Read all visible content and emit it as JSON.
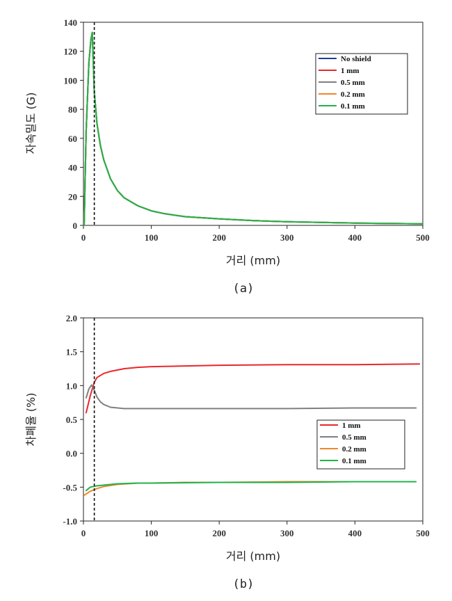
{
  "chart_data": [
    {
      "type": "line",
      "caption": "(a)",
      "xlabel": "거리 (mm)",
      "ylabel": "자속밀도 (G)",
      "xlim": [
        0,
        500
      ],
      "ylim": [
        0,
        140
      ],
      "xticks": [
        0,
        100,
        200,
        300,
        400,
        500
      ],
      "yticks": [
        0,
        20,
        40,
        60,
        80,
        100,
        120,
        140
      ],
      "xtick_labels": [
        "0",
        "100",
        "200",
        "300",
        "400",
        "500"
      ],
      "ytick_labels": [
        "0",
        "20",
        "40",
        "60",
        "80",
        "100",
        "120",
        "140"
      ],
      "vline_x": 16,
      "legend": "top-right",
      "series": [
        {
          "name": "No shield",
          "color": "#1f3a9a",
          "x": [
            1,
            4,
            8,
            11,
            13,
            16,
            20,
            25,
            30,
            40,
            50,
            60,
            80,
            100,
            120,
            150,
            200,
            250,
            300,
            350,
            400,
            450,
            500
          ],
          "y": [
            0,
            65,
            112,
            128,
            133,
            92,
            70,
            55,
            45,
            32,
            24,
            19,
            13.5,
            10,
            8,
            6,
            4.5,
            3.3,
            2.5,
            2,
            1.6,
            1.3,
            1.1
          ]
        },
        {
          "name": "1 mm",
          "color": "#e8262a",
          "x": [
            1,
            4,
            8,
            11,
            13,
            16,
            20,
            25,
            30,
            40,
            50,
            60,
            80,
            100,
            120,
            150,
            200,
            250,
            300,
            350,
            400,
            450,
            500
          ],
          "y": [
            0,
            65,
            112,
            128,
            133,
            92,
            70,
            55,
            45,
            32,
            24,
            19,
            13.5,
            10,
            8,
            6,
            4.5,
            3.3,
            2.5,
            2,
            1.6,
            1.3,
            1.1
          ]
        },
        {
          "name": "0.5 mm",
          "color": "#7f7f7f",
          "x": [
            1,
            4,
            8,
            11,
            13,
            16,
            20,
            25,
            30,
            40,
            50,
            60,
            80,
            100,
            120,
            150,
            200,
            250,
            300,
            350,
            400,
            450,
            500
          ],
          "y": [
            0,
            65,
            112,
            128,
            133,
            92,
            70,
            55,
            45,
            32,
            24,
            19,
            13.5,
            10,
            8,
            6,
            4.5,
            3.3,
            2.5,
            2,
            1.6,
            1.3,
            1.1
          ]
        },
        {
          "name": "0.2 mm",
          "color": "#f0862a",
          "x": [
            1,
            4,
            8,
            11,
            13,
            16,
            20,
            25,
            30,
            40,
            50,
            60,
            80,
            100,
            120,
            150,
            200,
            250,
            300,
            350,
            400,
            450,
            500
          ],
          "y": [
            0,
            65,
            112,
            128,
            133,
            92,
            70,
            55,
            45,
            32,
            24,
            19,
            13.5,
            10,
            8,
            6,
            4.5,
            3.3,
            2.5,
            2,
            1.6,
            1.3,
            1.1
          ]
        },
        {
          "name": "0.1 mm",
          "color": "#21b24b",
          "x": [
            1,
            4,
            8,
            11,
            13,
            16,
            20,
            25,
            30,
            40,
            50,
            60,
            80,
            100,
            120,
            150,
            200,
            250,
            300,
            350,
            400,
            450,
            500
          ],
          "y": [
            0,
            65,
            112,
            128,
            133,
            92,
            70,
            55,
            45,
            32,
            24,
            19,
            13.5,
            10,
            8,
            6,
            4.5,
            3.3,
            2.5,
            2,
            1.6,
            1.3,
            1.1
          ]
        }
      ]
    },
    {
      "type": "line",
      "caption": "(b)",
      "xlabel": "거리 (mm)",
      "ylabel": "차폐율 (%)",
      "xlim": [
        0,
        500
      ],
      "ylim": [
        -1.0,
        2.0
      ],
      "xticks": [
        0,
        100,
        200,
        300,
        400,
        500
      ],
      "yticks": [
        -1.0,
        -0.5,
        0.0,
        0.5,
        1.0,
        1.5,
        2.0
      ],
      "xtick_labels": [
        "0",
        "100",
        "200",
        "300",
        "400",
        "500"
      ],
      "ytick_labels": [
        "-1.0",
        "-0.5",
        "0.0",
        "0.5",
        "1.0",
        "1.5",
        "2.0"
      ],
      "vline_x": 16,
      "legend": "center-right",
      "series": [
        {
          "name": "1 mm",
          "color": "#e8262a",
          "x": [
            4,
            10,
            16,
            20,
            30,
            40,
            60,
            80,
            100,
            150,
            200,
            300,
            400,
            495
          ],
          "y": [
            0.6,
            0.85,
            1.05,
            1.12,
            1.18,
            1.21,
            1.25,
            1.27,
            1.28,
            1.29,
            1.3,
            1.31,
            1.31,
            1.32
          ]
        },
        {
          "name": "0.5 mm",
          "color": "#7f7f7f",
          "x": [
            4,
            8,
            12,
            16,
            20,
            25,
            30,
            40,
            60,
            100,
            200,
            300,
            400,
            490
          ],
          "y": [
            0.82,
            0.95,
            1.01,
            0.93,
            0.83,
            0.76,
            0.72,
            0.68,
            0.66,
            0.66,
            0.66,
            0.66,
            0.67,
            0.67
          ]
        },
        {
          "name": "0.2 mm",
          "color": "#f0862a",
          "x": [
            1,
            10,
            20,
            30,
            50,
            80,
            100,
            150,
            200,
            300,
            390
          ],
          "y": [
            -0.62,
            -0.56,
            -0.52,
            -0.49,
            -0.46,
            -0.44,
            -0.44,
            -0.43,
            -0.43,
            -0.42,
            -0.42
          ]
        },
        {
          "name": "0.1 mm",
          "color": "#21b24b",
          "x": [
            4,
            10,
            20,
            30,
            50,
            80,
            100,
            200,
            300,
            400,
            490
          ],
          "y": [
            -0.55,
            -0.5,
            -0.48,
            -0.47,
            -0.45,
            -0.44,
            -0.44,
            -0.43,
            -0.43,
            -0.42,
            -0.42
          ]
        }
      ]
    }
  ]
}
